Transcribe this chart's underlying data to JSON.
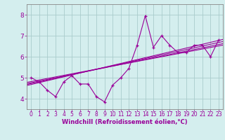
{
  "title": "",
  "xlabel": "Windchill (Refroidissement éolien,°C)",
  "ylabel": "",
  "background_color": "#d4eeee",
  "grid_color": "#aacccc",
  "line_color": "#990099",
  "spine_color": "#888888",
  "xlim": [
    -0.5,
    23.5
  ],
  "ylim": [
    3.5,
    8.5
  ],
  "xticks": [
    0,
    1,
    2,
    3,
    4,
    5,
    6,
    7,
    8,
    9,
    10,
    11,
    12,
    13,
    14,
    15,
    16,
    17,
    18,
    19,
    20,
    21,
    22,
    23
  ],
  "yticks": [
    4,
    5,
    6,
    7,
    8
  ],
  "scatter_x": [
    0,
    1,
    2,
    3,
    4,
    5,
    6,
    7,
    8,
    9,
    10,
    11,
    12,
    13,
    14,
    15,
    16,
    17,
    18,
    19,
    20,
    21,
    22,
    23
  ],
  "scatter_y": [
    5.0,
    4.8,
    4.4,
    4.1,
    4.8,
    5.1,
    4.7,
    4.7,
    4.1,
    3.85,
    4.65,
    5.0,
    5.45,
    6.55,
    7.95,
    6.45,
    7.0,
    6.55,
    6.2,
    6.2,
    6.55,
    6.55,
    6.0,
    6.8
  ],
  "line1_x": [
    -0.5,
    23.5
  ],
  "line1_y": [
    4.72,
    6.62
  ],
  "line2_x": [
    -0.5,
    23.5
  ],
  "line2_y": [
    4.78,
    6.55
  ],
  "line3_x": [
    -0.5,
    23.5
  ],
  "line3_y": [
    4.68,
    6.72
  ],
  "line4_x": [
    -0.5,
    23.5
  ],
  "line4_y": [
    4.63,
    6.82
  ],
  "xlabel_fontsize": 6,
  "xtick_fontsize": 5.5,
  "ytick_fontsize": 6.5
}
